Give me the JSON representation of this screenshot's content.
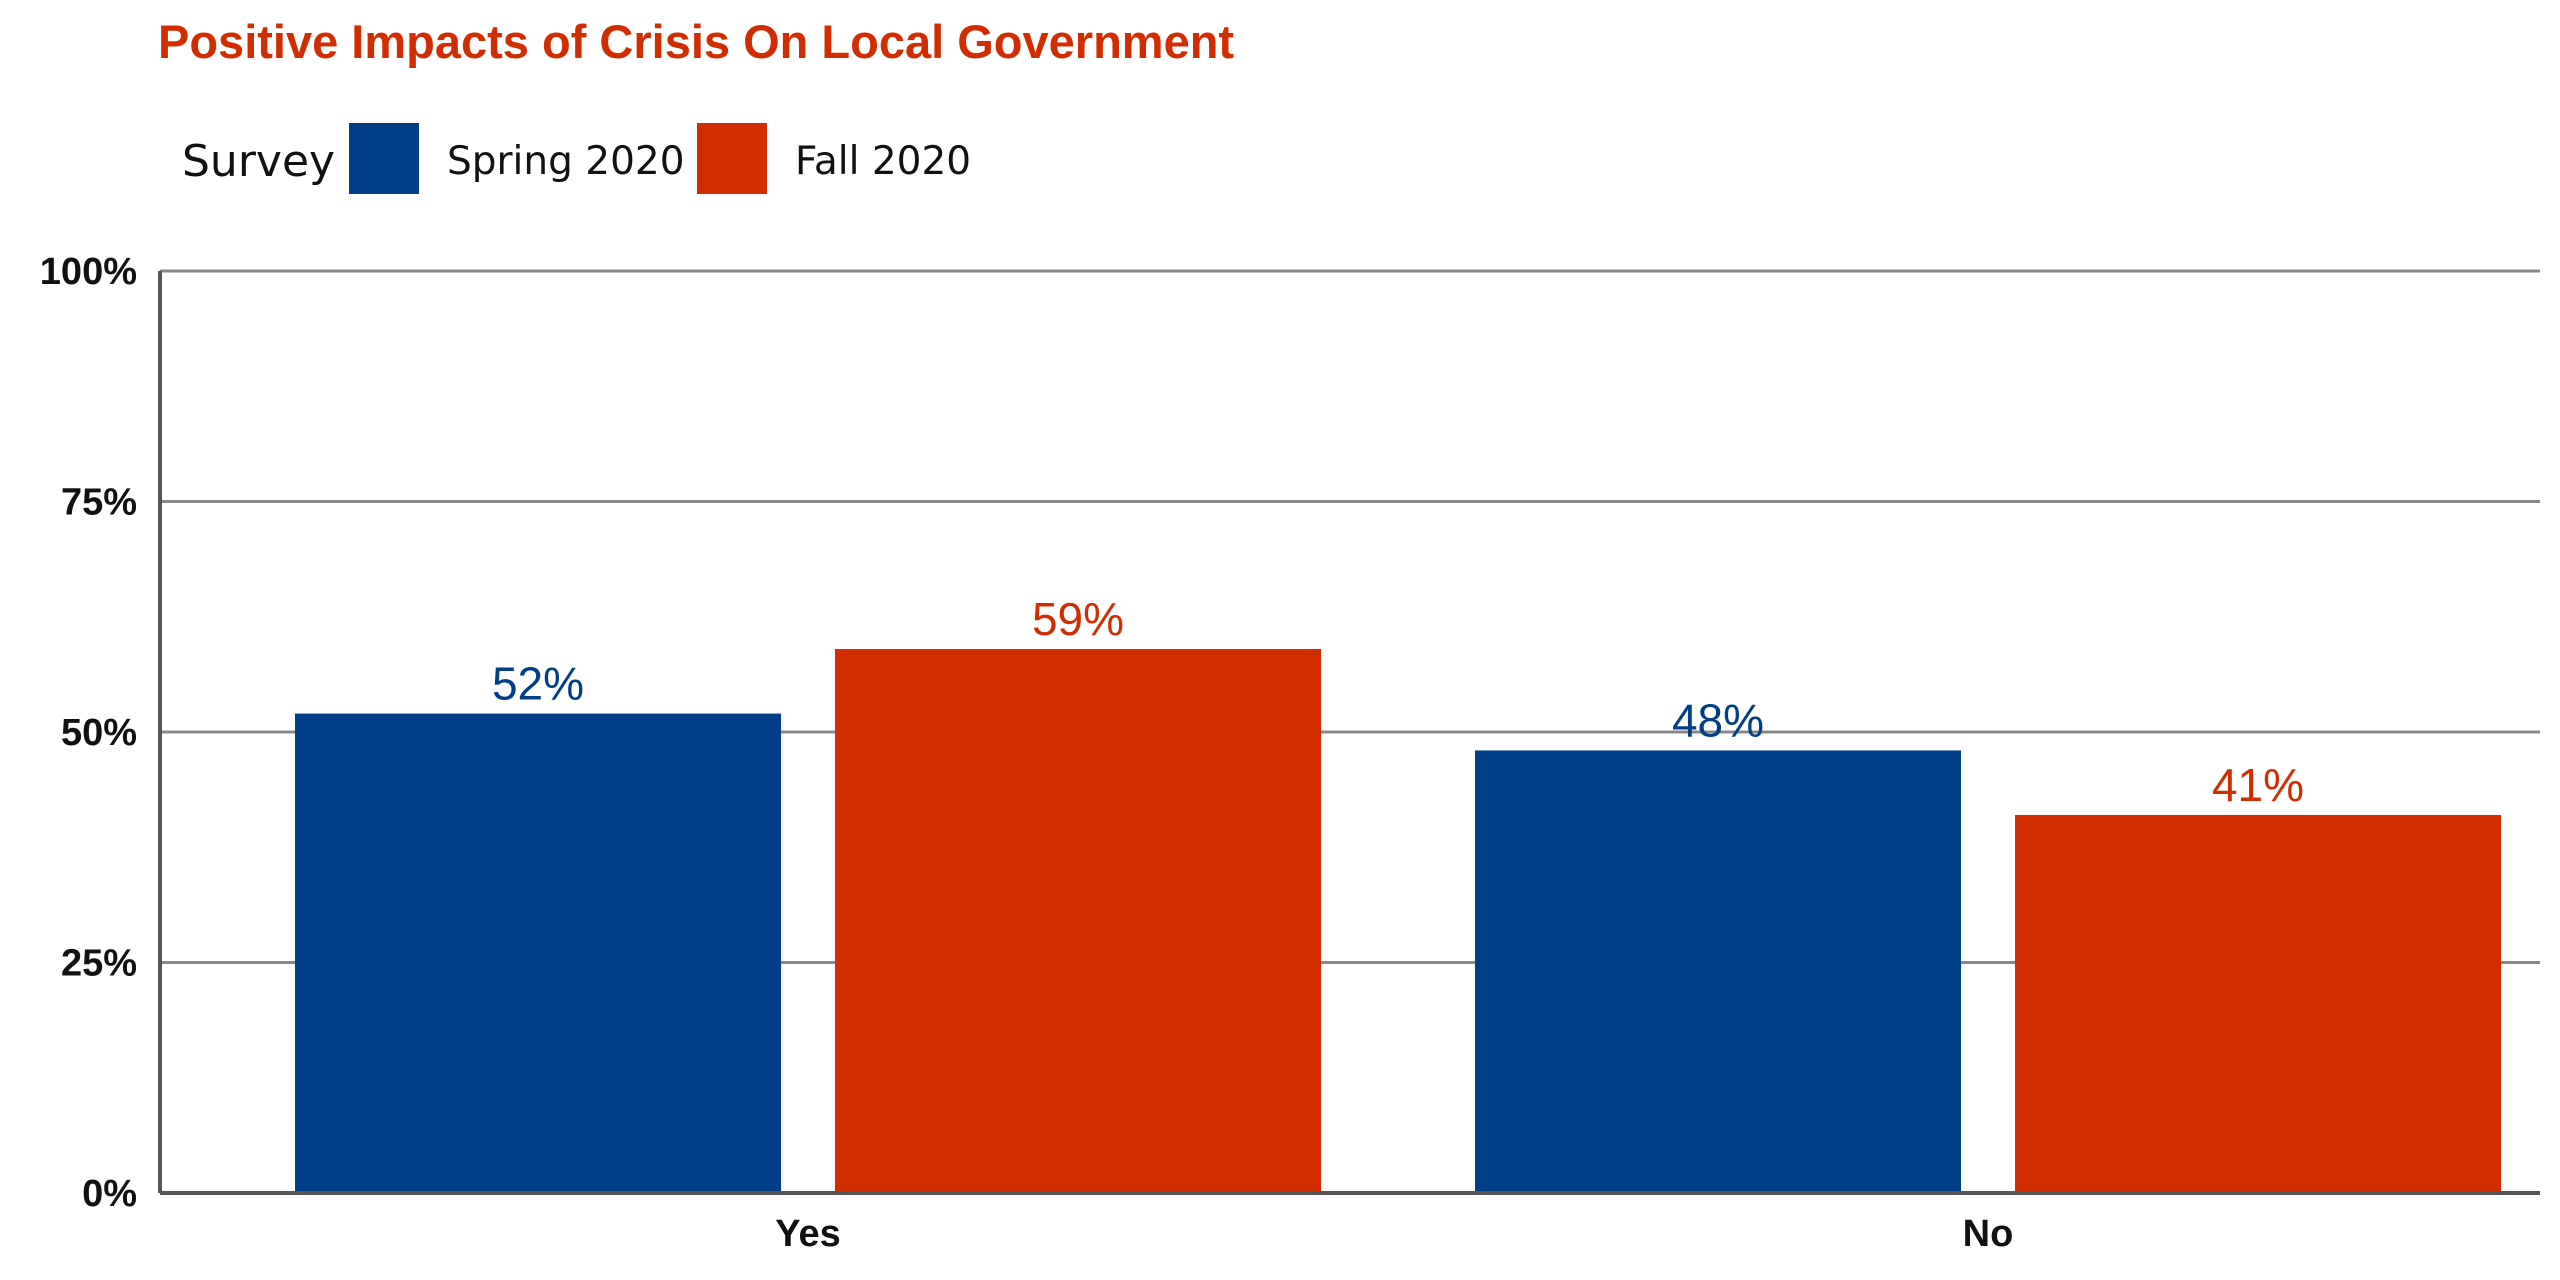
{
  "chart_data": {
    "type": "bar",
    "title": "Positive Impacts of Crisis On Local Government",
    "xlabel": "",
    "ylabel": "",
    "legend_title": "Survey",
    "legend_position": "top-left",
    "categories": [
      "Yes",
      "No"
    ],
    "series": [
      {
        "name": "Spring 2020",
        "values": [
          52,
          48
        ],
        "labels": [
          "52%",
          "48%"
        ],
        "color": "#003f87"
      },
      {
        "name": "Fall 2020",
        "values": [
          59,
          41
        ],
        "labels": [
          "59%",
          "41%"
        ],
        "color": "#d12d00"
      }
    ],
    "ylim": [
      0,
      100
    ],
    "yticks": [
      0,
      25,
      50,
      75,
      100
    ],
    "ytick_labels": [
      "0%",
      "25%",
      "50%",
      "75%",
      "100%"
    ],
    "grid": true,
    "title_color": "#d12d00",
    "gridline_color": "#888888",
    "axis_color": "#555555"
  }
}
